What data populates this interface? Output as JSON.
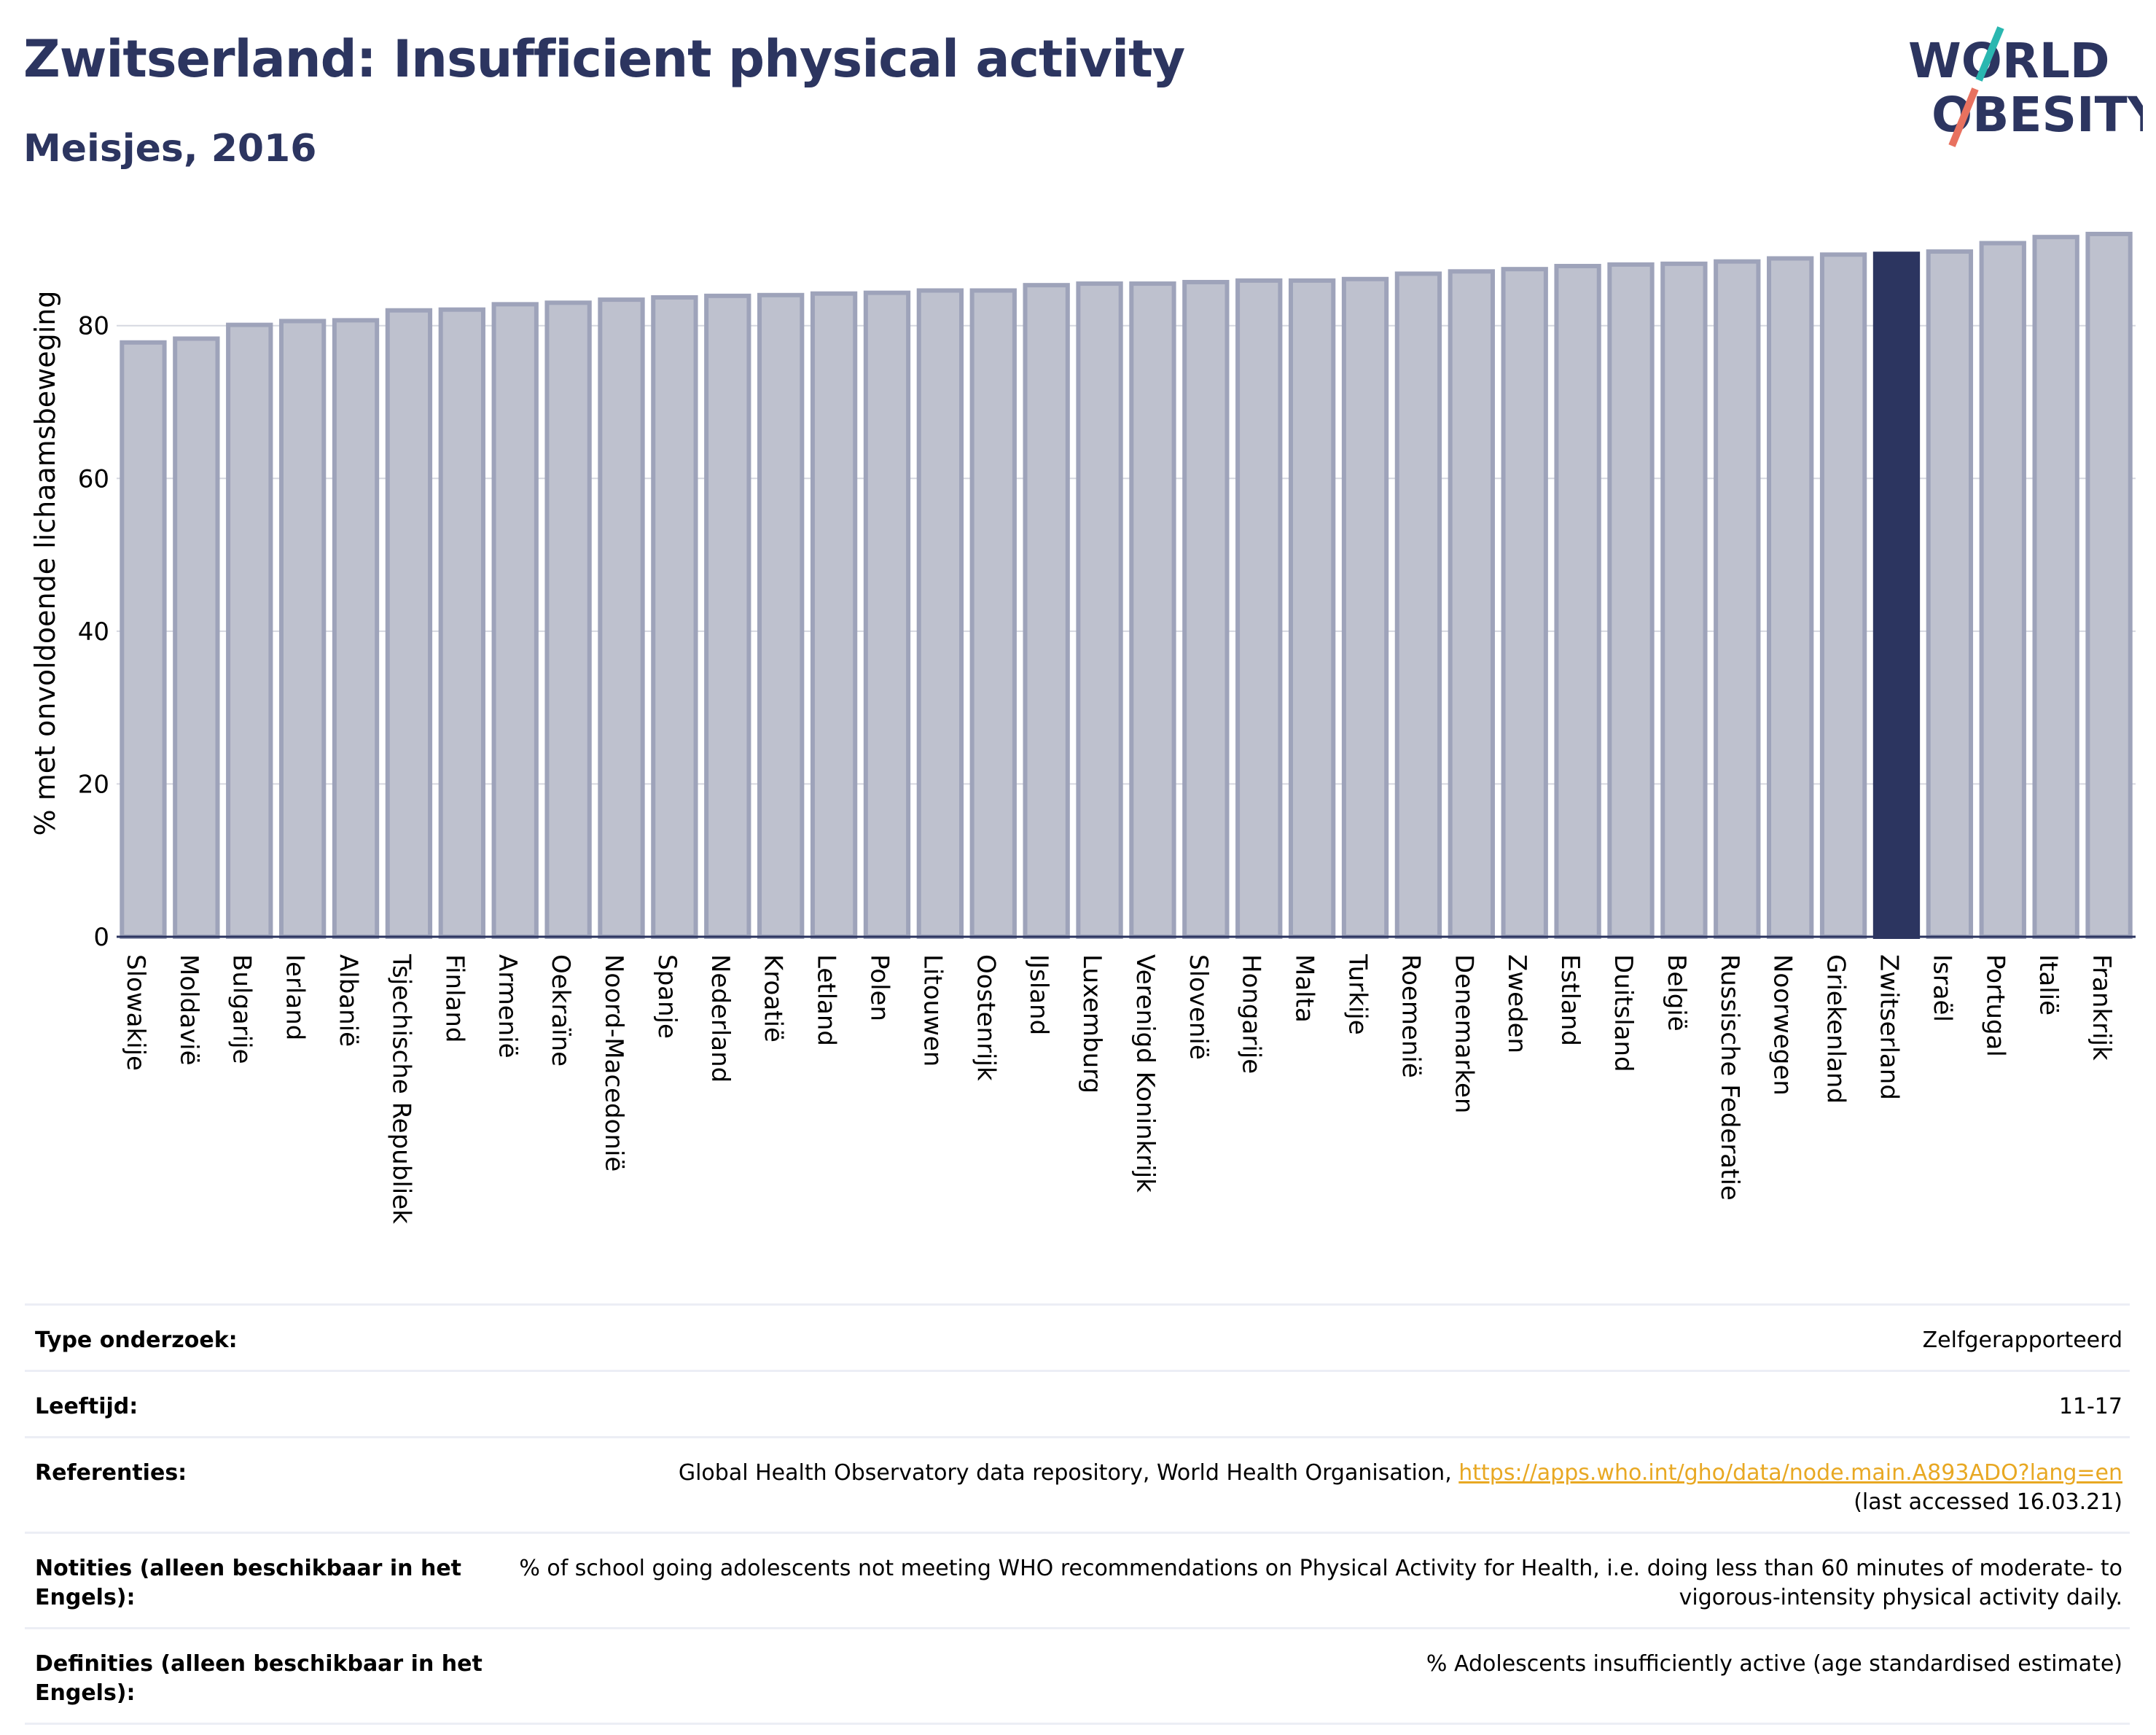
{
  "header": {
    "title": "Zwitserland: Insufficient physical activity",
    "subtitle": "Meisjes, 2016"
  },
  "logo": {
    "line1": "WORLD",
    "line2": "OBESITY"
  },
  "colors": {
    "bar_fill": "#bec1ce",
    "bar_stroke": "#9ea3ba",
    "highlight": "#2c3560",
    "title": "#2c3560",
    "logo_teal": "#2ab7b0",
    "logo_coral": "#e8715f",
    "link": "#e8a823"
  },
  "chart_data": {
    "type": "bar",
    "ylabel": "% met onvoldoende lichaamsbeweging",
    "ylim": [
      0,
      94
    ],
    "yticks": [
      0,
      20,
      40,
      60,
      80
    ],
    "grid": true,
    "highlight": "Zwitserland",
    "categories": [
      "Slowakije",
      "Moldavië",
      "Bulgarije",
      "Ierland",
      "Albanië",
      "Tsjechische Republiek",
      "Finland",
      "Armenië",
      "Oekraïne",
      "Noord-Macedonië",
      "Spanje",
      "Nederland",
      "Kroatië",
      "Letland",
      "Polen",
      "Litouwen",
      "Oostenrijk",
      "IJsland",
      "Luxemburg",
      "Verenigd Koninkrijk",
      "Slovenië",
      "Hongarije",
      "Malta",
      "Turkije",
      "Roemenië",
      "Denemarken",
      "Zweden",
      "Estland",
      "Duitsland",
      "België",
      "Russische Federatie",
      "Noorwegen",
      "Griekenland",
      "Zwitserland",
      "Israël",
      "Portugal",
      "Italië",
      "Frankrijk"
    ],
    "values": [
      77.8,
      78.3,
      80.1,
      80.6,
      80.7,
      82.0,
      82.1,
      82.8,
      83.0,
      83.4,
      83.7,
      83.9,
      84.0,
      84.2,
      84.3,
      84.6,
      84.6,
      85.3,
      85.5,
      85.5,
      85.7,
      85.9,
      85.9,
      86.1,
      86.8,
      87.1,
      87.4,
      87.8,
      88.0,
      88.1,
      88.4,
      88.8,
      89.3,
      89.4,
      89.7,
      90.8,
      91.6,
      92.0
    ]
  },
  "info": {
    "rows": [
      {
        "key": "Type onderzoek:",
        "value": "Zelfgerapporteerd"
      },
      {
        "key": "Leeftijd:",
        "value": "11-17"
      },
      {
        "key": "Referenties:",
        "value": "Global Health Observatory data repository, World Health Organisation, ",
        "link": "https://apps.who.int/gho/data/node.main.A893ADO?lang=en",
        "value_after": "(last accessed 16.03.21)"
      },
      {
        "key": "Notities (alleen beschikbaar in het Engels):",
        "value": "% of school going adolescents not meeting WHO recommendations on Physical Activity for Health, i.e. doing less than 60 minutes of moderate- to vigorous-intensity physical activity daily."
      },
      {
        "key": "Definities (alleen beschikbaar in het Engels):",
        "value": "% Adolescents insufficiently active (age standardised estimate)"
      }
    ]
  }
}
